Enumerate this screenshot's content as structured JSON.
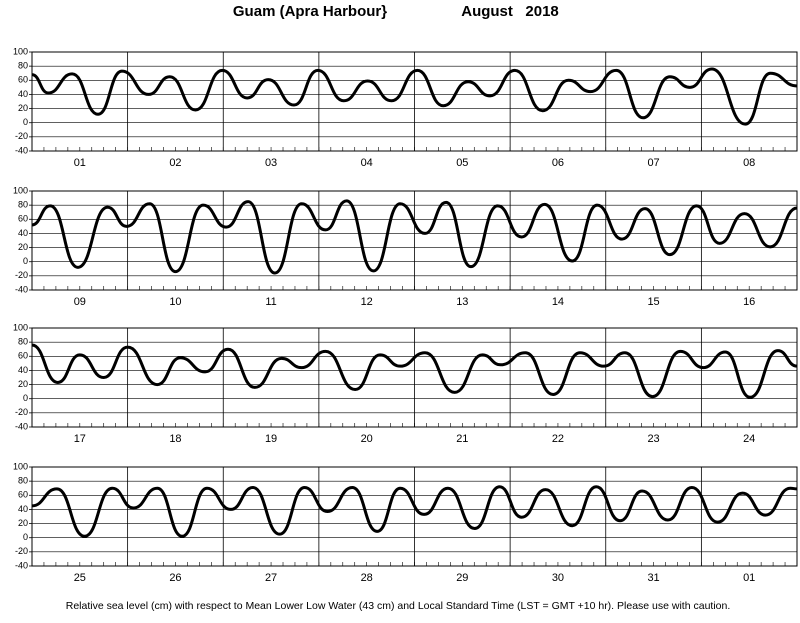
{
  "title": "Guam (Apra Harbour}",
  "period": "August   2018",
  "footnote": "Relative sea level (cm) with respect to Mean Lower Low Water (43 cm) and Local Standard Time (LST = GMT +10 hr). Please use with caution.",
  "chart_data": [
    {
      "type": "line",
      "categories": [
        "01",
        "02",
        "03",
        "04",
        "05",
        "06",
        "07",
        "08"
      ],
      "x": [
        0,
        0.17,
        0.42,
        0.69,
        0.94,
        1.22,
        1.44,
        1.71,
        1.99,
        2.25,
        2.47,
        2.74,
        2.99,
        3.26,
        3.51,
        3.76,
        4.03,
        4.3,
        4.56,
        4.79,
        5.05,
        5.34,
        5.61,
        5.84,
        6.11,
        6.39,
        6.67,
        6.88,
        7.11,
        7.46,
        7.72,
        8
      ],
      "series": [
        {
          "color": "#000000",
          "values": [
            68,
            42,
            69,
            12,
            73,
            40,
            65,
            18,
            74,
            35,
            61,
            25,
            74,
            31,
            59,
            31,
            74,
            24,
            58,
            38,
            74,
            17,
            60,
            44,
            74,
            7,
            65,
            50,
            76,
            -2,
            70,
            52
          ]
        }
      ],
      "xlim": [
        0,
        8
      ],
      "ylim": [
        -40,
        100
      ],
      "yticks": [
        -40,
        -20,
        0,
        20,
        40,
        60,
        80,
        100
      ],
      "grid": true
    },
    {
      "type": "line",
      "categories": [
        "09",
        "10",
        "11",
        "12",
        "13",
        "14",
        "15",
        "16"
      ],
      "x": [
        0,
        0.19,
        0.48,
        0.79,
        0.99,
        1.23,
        1.5,
        1.79,
        2.03,
        2.26,
        2.54,
        2.82,
        3.07,
        3.29,
        3.57,
        3.85,
        4.11,
        4.33,
        4.59,
        4.87,
        5.12,
        5.36,
        5.65,
        5.91,
        6.17,
        6.41,
        6.67,
        6.95,
        7.19,
        7.45,
        7.72,
        8
      ],
      "series": [
        {
          "color": "#000000",
          "values": [
            52,
            79,
            -8,
            77,
            50,
            82,
            -14,
            80,
            49,
            85,
            -16,
            82,
            45,
            86,
            -13,
            82,
            40,
            84,
            -7,
            79,
            35,
            81,
            1,
            80,
            32,
            75,
            10,
            79,
            26,
            68,
            21,
            76
          ]
        }
      ],
      "xlim": [
        0,
        8
      ],
      "ylim": [
        -40,
        100
      ],
      "yticks": [
        -40,
        -20,
        0,
        20,
        40,
        60,
        80,
        100
      ],
      "grid": true
    },
    {
      "type": "line",
      "categories": [
        "17",
        "18",
        "19",
        "20",
        "21",
        "22",
        "23",
        "24"
      ],
      "x": [
        0,
        0.27,
        0.5,
        0.75,
        1,
        1.31,
        1.55,
        1.81,
        2.05,
        2.33,
        2.61,
        2.82,
        3.07,
        3.38,
        3.64,
        3.85,
        4.11,
        4.42,
        4.71,
        4.9,
        5.16,
        5.45,
        5.73,
        5.98,
        6.2,
        6.49,
        6.78,
        7.02,
        7.25,
        7.51,
        7.8,
        8
      ],
      "series": [
        {
          "color": "#000000",
          "values": [
            76,
            23,
            62,
            30,
            73,
            20,
            58,
            38,
            70,
            16,
            57,
            44,
            67,
            13,
            62,
            46,
            65,
            9,
            62,
            48,
            65,
            6,
            65,
            46,
            65,
            3,
            67,
            44,
            66,
            2,
            68,
            46
          ]
        }
      ],
      "xlim": [
        0,
        8
      ],
      "ylim": [
        -40,
        100
      ],
      "yticks": [
        -40,
        -20,
        0,
        20,
        40,
        60,
        80,
        100
      ],
      "grid": true
    },
    {
      "type": "line",
      "categories": [
        "25",
        "26",
        "27",
        "28",
        "29",
        "30",
        "31",
        "01"
      ],
      "x": [
        0,
        0.26,
        0.55,
        0.84,
        1.06,
        1.31,
        1.57,
        1.83,
        2.08,
        2.31,
        2.59,
        2.85,
        3.09,
        3.35,
        3.61,
        3.85,
        4.1,
        4.35,
        4.63,
        4.89,
        5.12,
        5.37,
        5.65,
        5.9,
        6.15,
        6.38,
        6.65,
        6.9,
        7.17,
        7.43,
        7.67,
        7.93,
        8
      ],
      "series": [
        {
          "color": "#000000",
          "values": [
            45,
            69,
            2,
            70,
            42,
            70,
            2,
            70,
            40,
            71,
            5,
            71,
            37,
            71,
            9,
            70,
            33,
            70,
            13,
            72,
            29,
            68,
            17,
            72,
            24,
            66,
            25,
            71,
            22,
            63,
            32,
            70,
            69
          ]
        }
      ],
      "xlim": [
        0,
        8
      ],
      "ylim": [
        -40,
        100
      ],
      "yticks": [
        -40,
        -20,
        0,
        20,
        40,
        60,
        80,
        100
      ],
      "grid": true
    }
  ]
}
